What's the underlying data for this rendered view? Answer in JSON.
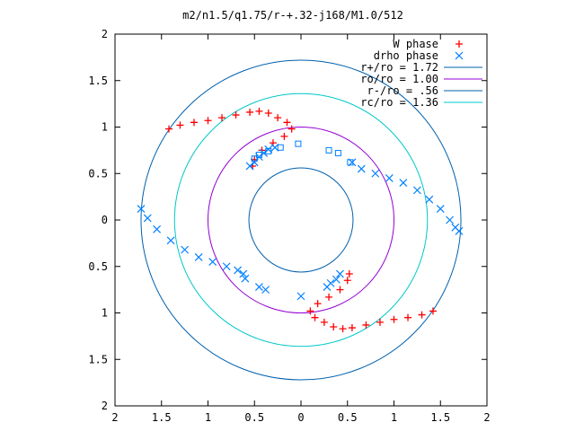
{
  "chart_data": {
    "type": "scatter",
    "title": "m2/n1.5/q1.75/r-+.32-j168/M1.0/512",
    "xlim": [
      -2,
      2
    ],
    "ylim": [
      -2,
      2
    ],
    "x_tick_values": [
      -2,
      -1.5,
      -1,
      -0.5,
      0,
      0.5,
      1,
      1.5,
      2
    ],
    "x_tick_labels": [
      "2",
      "1.5",
      "1",
      "0.5",
      "0",
      "0.5",
      "1",
      "1.5",
      "2"
    ],
    "y_tick_values": [
      2,
      1.5,
      1,
      0.5,
      0,
      -0.5,
      -1,
      -1.5,
      -2
    ],
    "y_tick_labels": [
      "2",
      "1.5",
      "1",
      "0.5",
      "0",
      "0.5",
      "1",
      "1.5",
      "2"
    ],
    "grid": false,
    "legend_position": "top-right",
    "circles": [
      {
        "name": "r+/ro = 1.72",
        "radius": 1.72,
        "color": "#0060ad"
      },
      {
        "name": "ro/ro = 1.00",
        "radius": 1.0,
        "color": "#9400d3"
      },
      {
        "name": "r-/ro = .56",
        "radius": 0.56,
        "color": "#0060ad"
      },
      {
        "name": "rc/ro = 1.36",
        "radius": 1.36,
        "color": "#00c8c8"
      }
    ],
    "series": [
      {
        "name": "W phase",
        "marker": "+",
        "color": "#ff0000",
        "points": [
          [
            -1.42,
            0.98
          ],
          [
            -1.3,
            1.02
          ],
          [
            -1.15,
            1.05
          ],
          [
            -1.0,
            1.07
          ],
          [
            -0.85,
            1.1
          ],
          [
            -0.7,
            1.13
          ],
          [
            -0.55,
            1.16
          ],
          [
            -0.45,
            1.17
          ],
          [
            -0.35,
            1.15
          ],
          [
            -0.25,
            1.1
          ],
          [
            -0.15,
            1.05
          ],
          [
            -0.1,
            0.98
          ],
          [
            -0.18,
            0.9
          ],
          [
            -0.3,
            0.83
          ],
          [
            -0.42,
            0.75
          ],
          [
            -0.5,
            0.65
          ],
          [
            -0.52,
            0.58
          ],
          [
            1.42,
            -0.98
          ],
          [
            1.3,
            -1.02
          ],
          [
            1.15,
            -1.05
          ],
          [
            1.0,
            -1.07
          ],
          [
            0.85,
            -1.1
          ],
          [
            0.7,
            -1.13
          ],
          [
            0.55,
            -1.16
          ],
          [
            0.45,
            -1.17
          ],
          [
            0.35,
            -1.15
          ],
          [
            0.25,
            -1.1
          ],
          [
            0.15,
            -1.05
          ],
          [
            0.1,
            -0.98
          ],
          [
            0.18,
            -0.9
          ],
          [
            0.3,
            -0.83
          ],
          [
            0.42,
            -0.75
          ],
          [
            0.5,
            -0.65
          ],
          [
            0.52,
            -0.58
          ]
        ]
      },
      {
        "name": "drho phase",
        "marker": "x",
        "color": "#0080ff",
        "points": [
          [
            0.55,
            0.62
          ],
          [
            0.65,
            0.55
          ],
          [
            0.8,
            0.5
          ],
          [
            0.95,
            0.45
          ],
          [
            1.1,
            0.4
          ],
          [
            1.25,
            0.32
          ],
          [
            1.38,
            0.22
          ],
          [
            1.5,
            0.12
          ],
          [
            1.6,
            0.0
          ],
          [
            1.66,
            -0.08
          ],
          [
            1.7,
            -0.12
          ],
          [
            -1.72,
            0.12
          ],
          [
            -1.65,
            0.02
          ],
          [
            -1.55,
            -0.1
          ],
          [
            -1.4,
            -0.22
          ],
          [
            -1.25,
            -0.32
          ],
          [
            -1.1,
            -0.4
          ],
          [
            -0.95,
            -0.45
          ],
          [
            -0.8,
            -0.5
          ],
          [
            -0.68,
            -0.54
          ],
          [
            -0.62,
            -0.58
          ],
          [
            -0.55,
            0.58
          ],
          [
            -0.5,
            0.62
          ],
          [
            -0.45,
            0.68
          ],
          [
            -0.4,
            0.72
          ],
          [
            -0.35,
            0.76
          ],
          [
            -0.28,
            0.78
          ],
          [
            0.42,
            -0.58
          ],
          [
            0.38,
            -0.64
          ],
          [
            0.32,
            -0.68
          ],
          [
            0.28,
            -0.72
          ],
          [
            -0.45,
            -0.72
          ],
          [
            -0.38,
            -0.75
          ],
          [
            0.0,
            -0.82
          ],
          [
            -0.6,
            -0.63
          ]
        ]
      },
      {
        "name": "",
        "marker": "square",
        "color": "#0080ff",
        "points": [
          [
            -0.5,
            0.66
          ],
          [
            -0.45,
            0.7
          ],
          [
            -0.35,
            0.74
          ],
          [
            -0.22,
            0.78
          ],
          [
            -0.03,
            0.82
          ],
          [
            0.3,
            0.75
          ],
          [
            0.4,
            0.72
          ],
          [
            0.53,
            0.62
          ]
        ]
      }
    ]
  }
}
